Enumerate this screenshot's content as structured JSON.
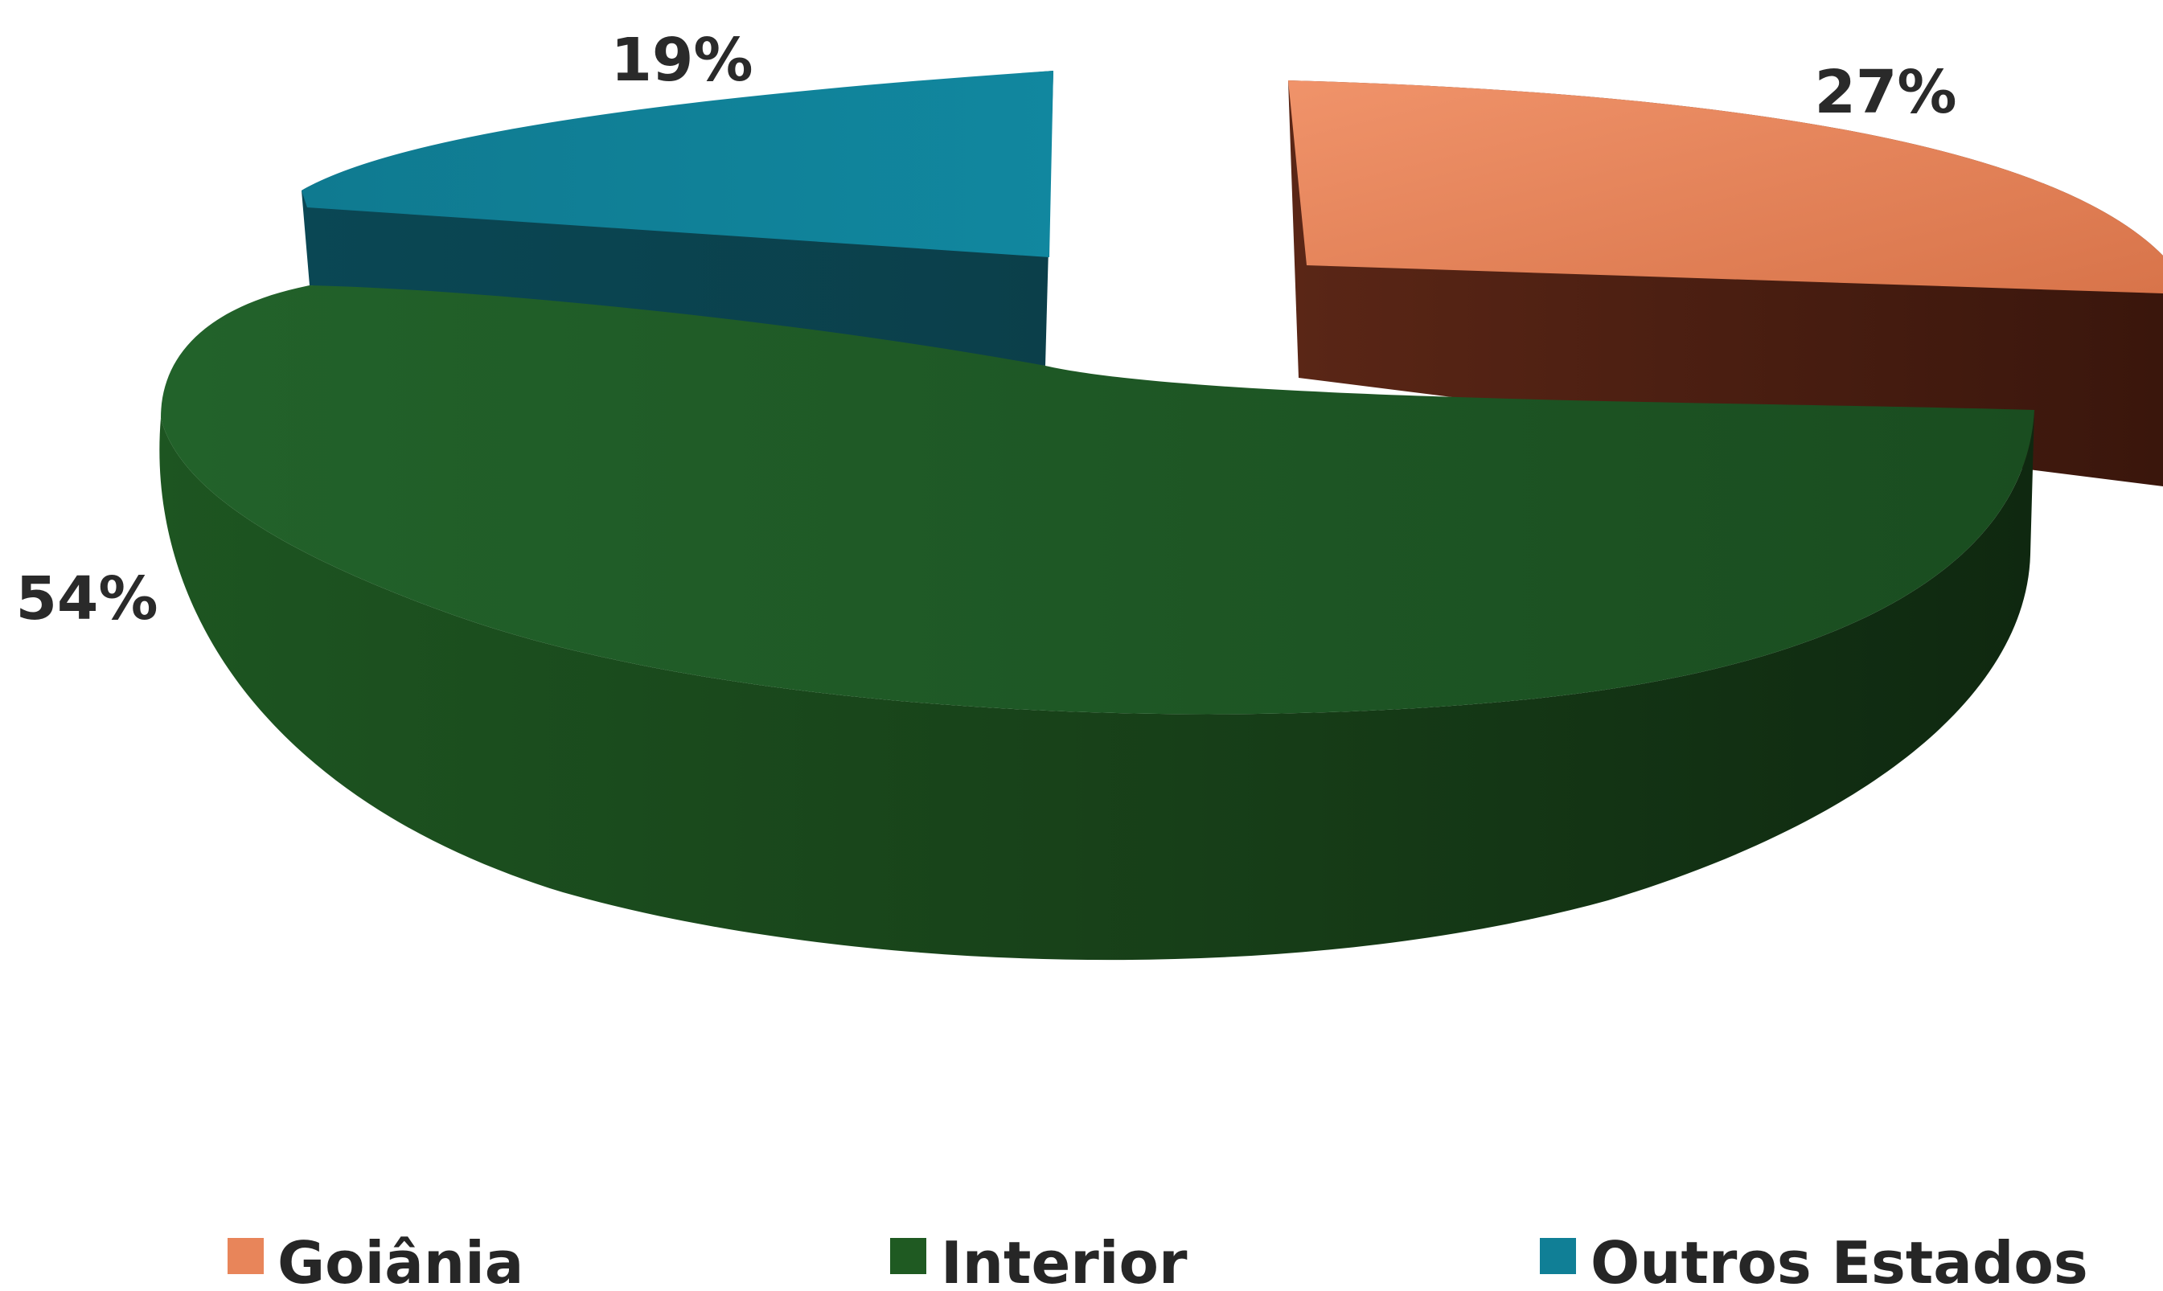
{
  "chart_data": {
    "type": "pie",
    "three_d": true,
    "exploded": true,
    "categories": [
      "Goiânia",
      "Interior",
      "Outros Estados"
    ],
    "values": [
      27,
      54,
      19
    ],
    "labels": [
      "27%",
      "54%",
      "19%"
    ],
    "unit": "%",
    "colors": {
      "Goiânia": "#e8855a",
      "Interior": "#1f5a22",
      "Outros Estados": "#107f96"
    },
    "legend_placement": "bottom",
    "title": ""
  }
}
